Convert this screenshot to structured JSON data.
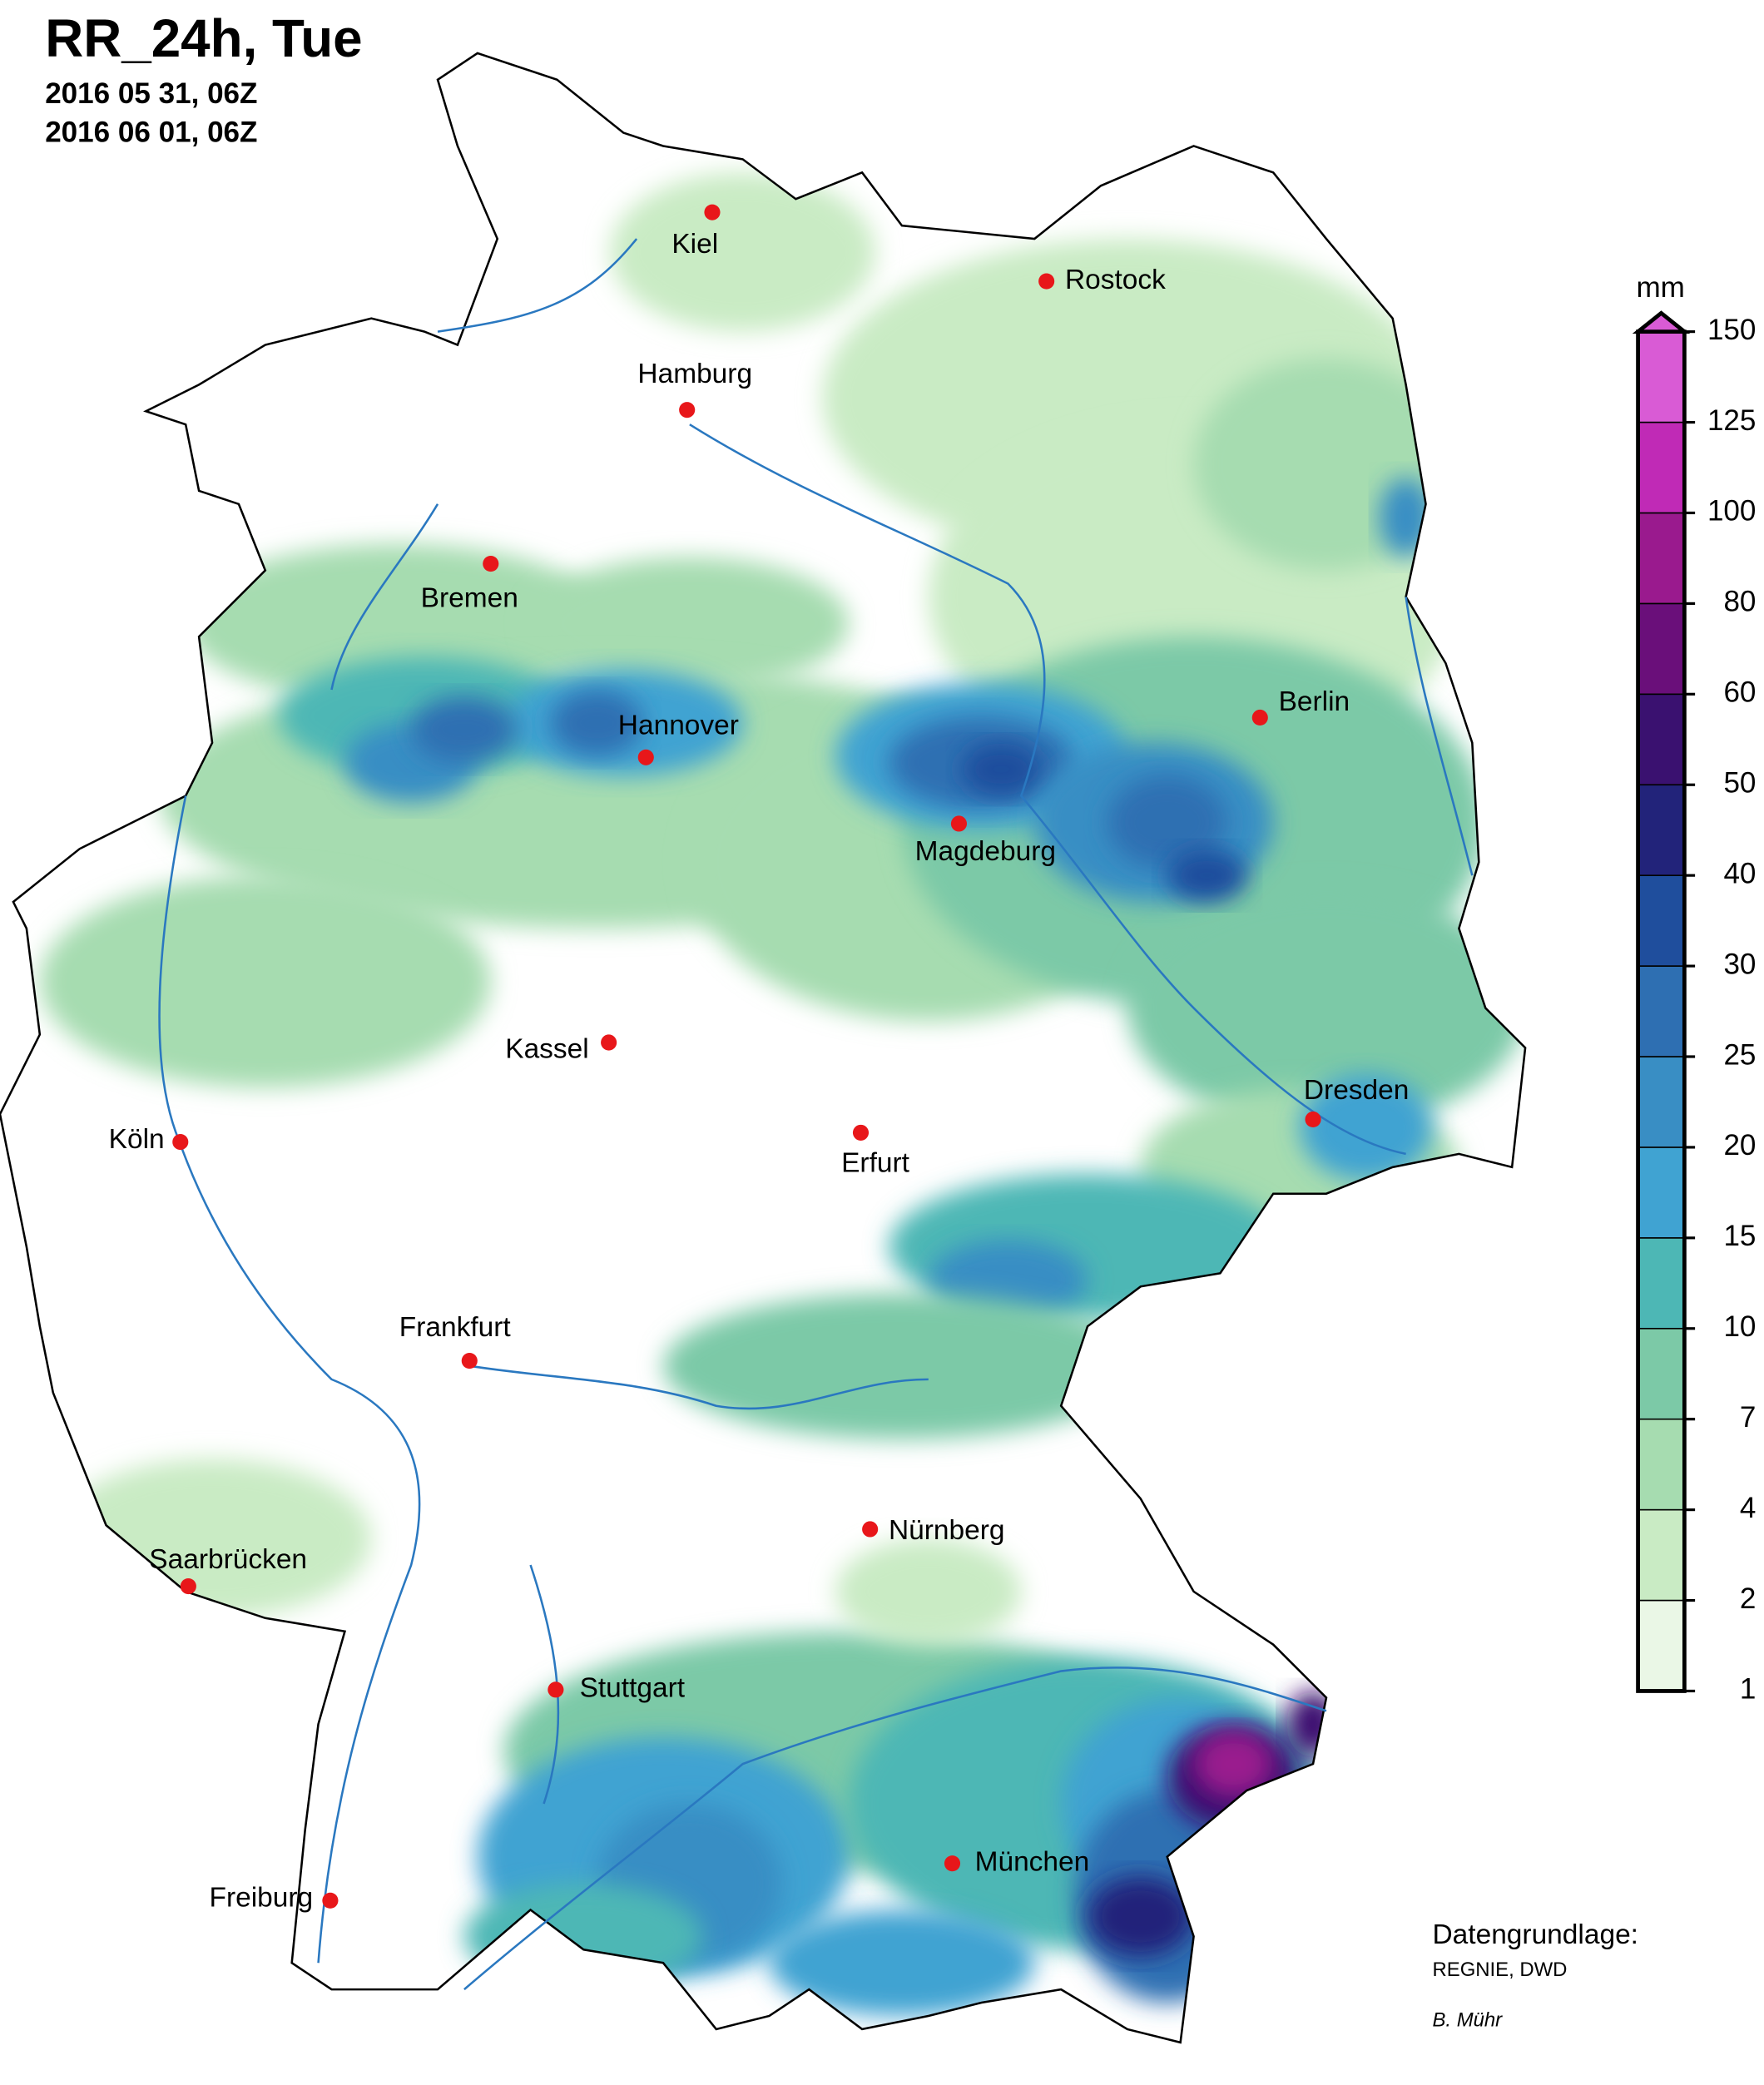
{
  "header": {
    "title": "RR_24h, Tue",
    "start": "2016 05 31, 06Z",
    "end": "2016 06 01, 06Z"
  },
  "cities": [
    "Kiel",
    "Rostock",
    "Hamburg",
    "Bremen",
    "Hannover",
    "Berlin",
    "Magdeburg",
    "Kassel",
    "Köln",
    "Erfurt",
    "Dresden",
    "Frankfurt",
    "Nürnberg",
    "Saarbrücken",
    "Stuttgart",
    "München",
    "Freiburg"
  ],
  "legend": {
    "unit": "mm",
    "ticks": [
      1,
      2,
      4,
      7,
      10,
      15,
      20,
      25,
      30,
      40,
      50,
      60,
      80,
      100,
      125,
      150
    ],
    "colors": [
      "#eaf7e6",
      "#c9ebc4",
      "#a6dcb0",
      "#7cc9a7",
      "#4db7b5",
      "#40a3d2",
      "#398ec4",
      "#2e6fb2",
      "#1f4e9d",
      "#22237a",
      "#3a1170",
      "#6a0f7a",
      "#9a1a8e",
      "#c02ab6",
      "#d95bd5"
    ]
  },
  "credits": {
    "source_label": "Datengrundlage:",
    "source": "REGNIE, DWD",
    "author": "B. Mühr"
  }
}
